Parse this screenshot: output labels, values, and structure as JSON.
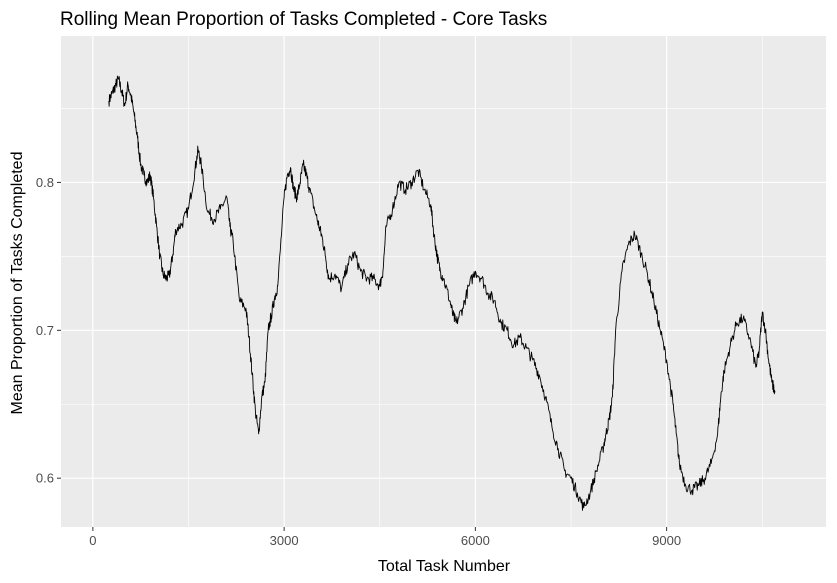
{
  "chart_data": {
    "type": "line",
    "title": "Rolling Mean Proportion of Tasks Completed - Core Tasks",
    "xlabel": "Total Task Number",
    "ylabel": "Mean Proportion of Tasks Completed",
    "xlim": [
      -500,
      11500
    ],
    "ylim": [
      0.567,
      0.899
    ],
    "x_ticks": [
      0,
      3000,
      6000,
      9000
    ],
    "x_tick_labels": [
      "0",
      "3000",
      "6000",
      "9000"
    ],
    "y_ticks": [
      0.6,
      0.7,
      0.8
    ],
    "y_tick_labels": [
      "0.6",
      "0.7",
      "0.8"
    ],
    "grid": true,
    "panel_color": "#ebebeb",
    "line_color": "#000000",
    "series": [
      {
        "x": [
          250,
          300,
          350,
          400,
          450,
          500,
          550,
          600,
          650,
          700,
          750,
          800,
          850,
          900,
          950,
          1000,
          1050,
          1100,
          1150,
          1200,
          1250,
          1300,
          1400,
          1500,
          1600,
          1650,
          1700,
          1800,
          1900,
          2000,
          2100,
          2150,
          2200,
          2300,
          2400,
          2450,
          2500,
          2550,
          2600,
          2650,
          2700,
          2750,
          2800,
          2850,
          2900,
          3000,
          3050,
          3100,
          3150,
          3200,
          3250,
          3300,
          3350,
          3400,
          3500,
          3550,
          3600,
          3650,
          3700,
          3800,
          3900,
          4000,
          4100,
          4200,
          4300,
          4400,
          4500,
          4550,
          4600,
          4700,
          4800,
          4900,
          5000,
          5100,
          5200,
          5300,
          5350,
          5400,
          5450,
          5500,
          5600,
          5650,
          5700,
          5800,
          5900,
          6000,
          6100,
          6200,
          6300,
          6400,
          6500,
          6600,
          6700,
          6800,
          6900,
          7000,
          7100,
          7200,
          7300,
          7400,
          7500,
          7600,
          7700,
          7800,
          7900,
          8000,
          8050,
          8100,
          8150,
          8200,
          8300,
          8400,
          8500,
          8600,
          8700,
          8800,
          8900,
          9000,
          9100,
          9150,
          9200,
          9300,
          9400,
          9500,
          9600,
          9700,
          9800,
          9850,
          9900,
          10000,
          10100,
          10200,
          10300,
          10400,
          10450,
          10500,
          10550,
          10600,
          10650,
          10700
        ],
        "y": [
          0.855,
          0.86,
          0.865,
          0.87,
          0.862,
          0.852,
          0.866,
          0.858,
          0.845,
          0.83,
          0.812,
          0.805,
          0.8,
          0.805,
          0.79,
          0.77,
          0.75,
          0.738,
          0.735,
          0.737,
          0.75,
          0.768,
          0.772,
          0.782,
          0.808,
          0.822,
          0.812,
          0.78,
          0.775,
          0.782,
          0.79,
          0.77,
          0.76,
          0.72,
          0.715,
          0.695,
          0.67,
          0.645,
          0.63,
          0.655,
          0.665,
          0.7,
          0.71,
          0.722,
          0.73,
          0.79,
          0.805,
          0.81,
          0.795,
          0.79,
          0.8,
          0.812,
          0.805,
          0.795,
          0.778,
          0.77,
          0.762,
          0.75,
          0.735,
          0.738,
          0.728,
          0.745,
          0.752,
          0.74,
          0.735,
          0.735,
          0.73,
          0.74,
          0.77,
          0.782,
          0.8,
          0.795,
          0.8,
          0.808,
          0.795,
          0.785,
          0.765,
          0.75,
          0.74,
          0.735,
          0.72,
          0.71,
          0.705,
          0.715,
          0.73,
          0.74,
          0.735,
          0.725,
          0.72,
          0.705,
          0.7,
          0.69,
          0.695,
          0.688,
          0.68,
          0.67,
          0.655,
          0.635,
          0.62,
          0.605,
          0.6,
          0.59,
          0.58,
          0.59,
          0.605,
          0.62,
          0.63,
          0.64,
          0.655,
          0.7,
          0.74,
          0.758,
          0.765,
          0.752,
          0.738,
          0.72,
          0.7,
          0.68,
          0.65,
          0.63,
          0.61,
          0.595,
          0.592,
          0.595,
          0.6,
          0.61,
          0.63,
          0.655,
          0.672,
          0.69,
          0.705,
          0.708,
          0.695,
          0.675,
          0.685,
          0.712,
          0.7,
          0.68,
          0.665,
          0.658
        ],
        "x_tail": []
      }
    ]
  }
}
